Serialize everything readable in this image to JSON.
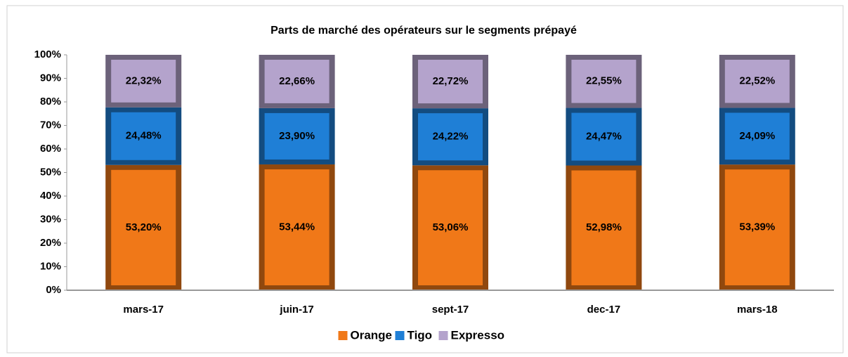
{
  "chart_data": {
    "type": "stacked_bar",
    "title": "Parts de marché  des opérateurs sur le segments prépayé",
    "categories": [
      "mars-17",
      "juin-17",
      "sept-17",
      "dec-17",
      "mars-18"
    ],
    "series": [
      {
        "name": "Orange",
        "color": "#f07818",
        "values": [
          53.2,
          53.44,
          53.06,
          52.98,
          53.39
        ],
        "value_labels": [
          "53,20%",
          "53,44%",
          "53,06%",
          "52,98%",
          "53,39%"
        ]
      },
      {
        "name": "Tigo",
        "color": "#1f7fd6",
        "values": [
          24.48,
          23.9,
          24.22,
          24.47,
          24.09
        ],
        "value_labels": [
          "24,48%",
          "23,90%",
          "24,22%",
          "24,47%",
          "24,09%"
        ]
      },
      {
        "name": "Expresso",
        "color": "#b4a3cc",
        "values": [
          22.32,
          22.66,
          22.72,
          22.55,
          22.52
        ],
        "value_labels": [
          "22,32%",
          "22,66%",
          "22,72%",
          "22,55%",
          "22,52%"
        ]
      }
    ],
    "ylim": [
      0,
      100
    ],
    "yticks": [
      {
        "value": 0,
        "label": "0%"
      },
      {
        "value": 10,
        "label": "10%"
      },
      {
        "value": 20,
        "label": "20%"
      },
      {
        "value": 30,
        "label": "30%"
      },
      {
        "value": 40,
        "label": "40%"
      },
      {
        "value": 50,
        "label": "50%"
      },
      {
        "value": 60,
        "label": "60%"
      },
      {
        "value": 70,
        "label": "70%"
      },
      {
        "value": 80,
        "label": "80%"
      },
      {
        "value": 90,
        "label": "90%"
      },
      {
        "value": 100,
        "label": "100%"
      }
    ],
    "legend": "bottom"
  }
}
